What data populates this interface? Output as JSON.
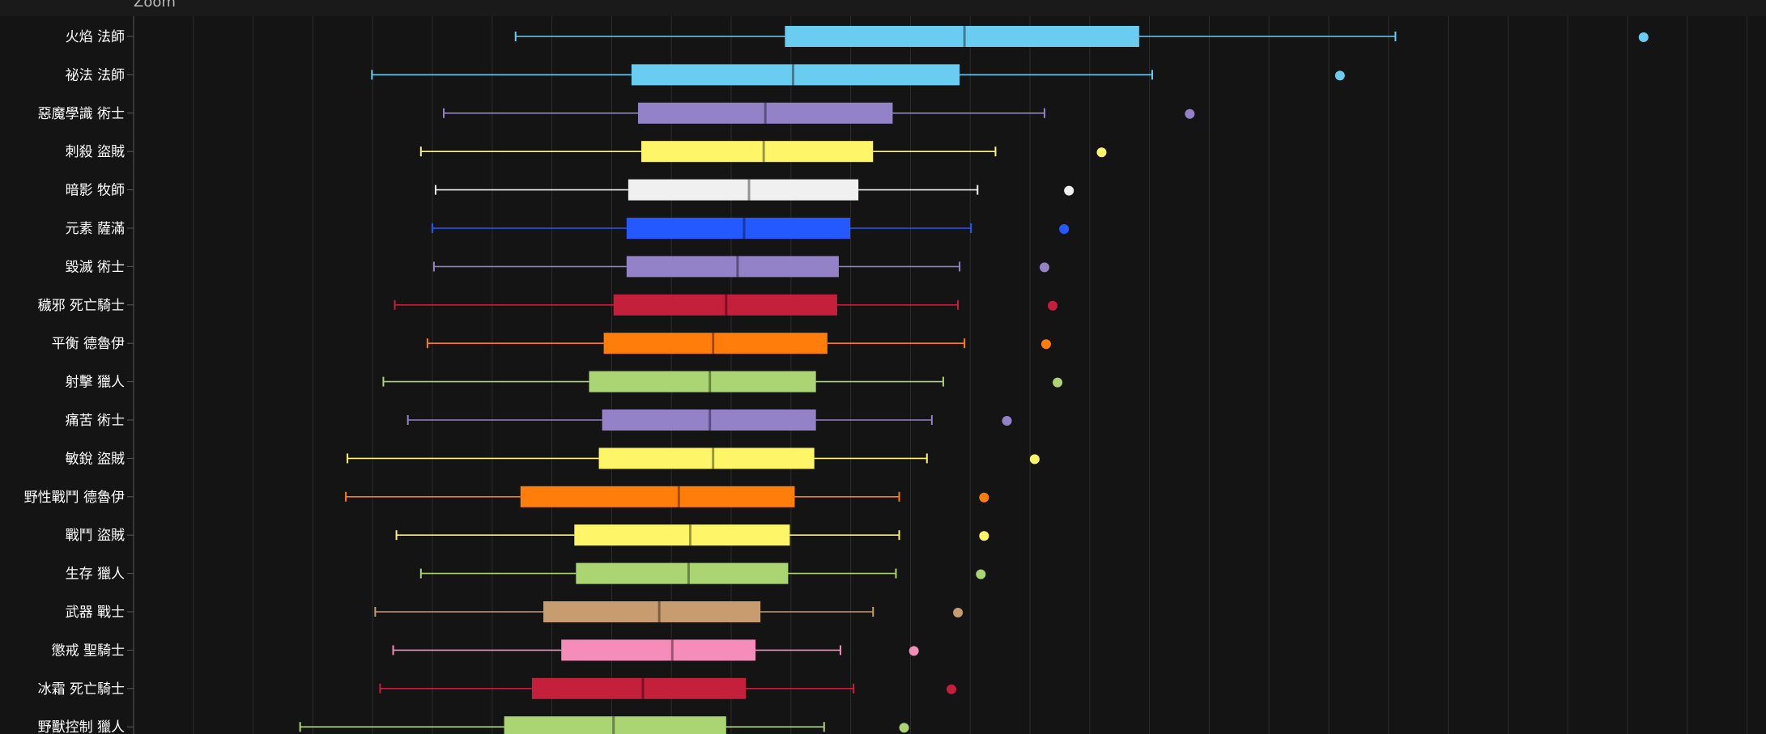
{
  "zoom_label": "Zoom",
  "chart_data": {
    "type": "boxplot",
    "orientation": "horizontal",
    "title": "",
    "xlabel": "",
    "ylabel": "",
    "xlim": [
      0,
      100
    ],
    "grid": true,
    "categories": [
      "火焰 法師",
      "祕法 法師",
      "惡魔學識 術士",
      "刺殺 盜賊",
      "暗影 牧師",
      "元素 薩滿",
      "毀滅 術士",
      "穢邪 死亡騎士",
      "平衡 德魯伊",
      "射擊 獵人",
      "痛苦 術士",
      "敏銳 盜賊",
      "野性戰鬥 德魯伊",
      "戰鬥 盜賊",
      "生存 獵人",
      "武器 戰士",
      "懲戒 聖騎士",
      "冰霜 死亡騎士",
      "野獸控制 獵人"
    ],
    "boxes": [
      {
        "min": 23.4,
        "q1": 39.9,
        "median": 50.9,
        "q3": 61.6,
        "max": 77.3,
        "outlier": 92.5,
        "color": "#69ccf0"
      },
      {
        "min": 14.6,
        "q1": 30.5,
        "median": 40.4,
        "q3": 50.6,
        "max": 62.4,
        "outlier": 73.9,
        "color": "#69ccf0"
      },
      {
        "min": 19.0,
        "q1": 30.9,
        "median": 38.7,
        "q3": 46.5,
        "max": 55.8,
        "outlier": 64.7,
        "color": "#9482c9"
      },
      {
        "min": 17.6,
        "q1": 31.1,
        "median": 38.6,
        "q3": 45.3,
        "max": 52.8,
        "outlier": 59.3,
        "color": "#fff569"
      },
      {
        "min": 18.5,
        "q1": 30.3,
        "median": 37.7,
        "q3": 44.4,
        "max": 51.7,
        "outlier": 57.3,
        "color": "#f0f0f0"
      },
      {
        "min": 18.3,
        "q1": 30.2,
        "median": 37.4,
        "q3": 43.9,
        "max": 51.3,
        "outlier": 57.0,
        "color": "#2459ff"
      },
      {
        "min": 18.4,
        "q1": 30.2,
        "median": 37.0,
        "q3": 43.2,
        "max": 50.6,
        "outlier": 55.8,
        "color": "#9482c9"
      },
      {
        "min": 16.0,
        "q1": 29.4,
        "median": 36.3,
        "q3": 43.1,
        "max": 50.5,
        "outlier": 56.3,
        "color": "#c41f3b"
      },
      {
        "min": 18.0,
        "q1": 28.8,
        "median": 35.5,
        "q3": 42.5,
        "max": 50.9,
        "outlier": 55.9,
        "color": "#ff7d0a"
      },
      {
        "min": 15.3,
        "q1": 27.9,
        "median": 35.3,
        "q3": 41.8,
        "max": 49.6,
        "outlier": 56.6,
        "color": "#abd473"
      },
      {
        "min": 16.8,
        "q1": 28.7,
        "median": 35.3,
        "q3": 41.8,
        "max": 48.9,
        "outlier": 53.5,
        "color": "#9482c9"
      },
      {
        "min": 13.1,
        "q1": 28.5,
        "median": 35.5,
        "q3": 41.7,
        "max": 48.6,
        "outlier": 55.2,
        "color": "#fff569"
      },
      {
        "min": 13.0,
        "q1": 23.7,
        "median": 33.4,
        "q3": 40.5,
        "max": 46.9,
        "outlier": 52.1,
        "color": "#ff7d0a"
      },
      {
        "min": 16.1,
        "q1": 27.0,
        "median": 34.1,
        "q3": 40.2,
        "max": 46.9,
        "outlier": 52.1,
        "color": "#fff569"
      },
      {
        "min": 17.6,
        "q1": 27.1,
        "median": 34.0,
        "q3": 40.1,
        "max": 46.7,
        "outlier": 51.9,
        "color": "#abd473"
      },
      {
        "min": 14.8,
        "q1": 25.1,
        "median": 32.2,
        "q3": 38.4,
        "max": 45.3,
        "outlier": 50.5,
        "color": "#c79c6e"
      },
      {
        "min": 15.9,
        "q1": 26.2,
        "median": 33.0,
        "q3": 38.1,
        "max": 43.3,
        "outlier": 47.8,
        "color": "#f58cba"
      },
      {
        "min": 15.1,
        "q1": 24.4,
        "median": 31.2,
        "q3": 37.5,
        "max": 44.1,
        "outlier": 50.1,
        "color": "#c41f3b"
      },
      {
        "min": 10.2,
        "q1": 22.7,
        "median": 29.4,
        "q3": 36.3,
        "max": 42.3,
        "outlier": 47.2,
        "color": "#abd473"
      }
    ]
  }
}
